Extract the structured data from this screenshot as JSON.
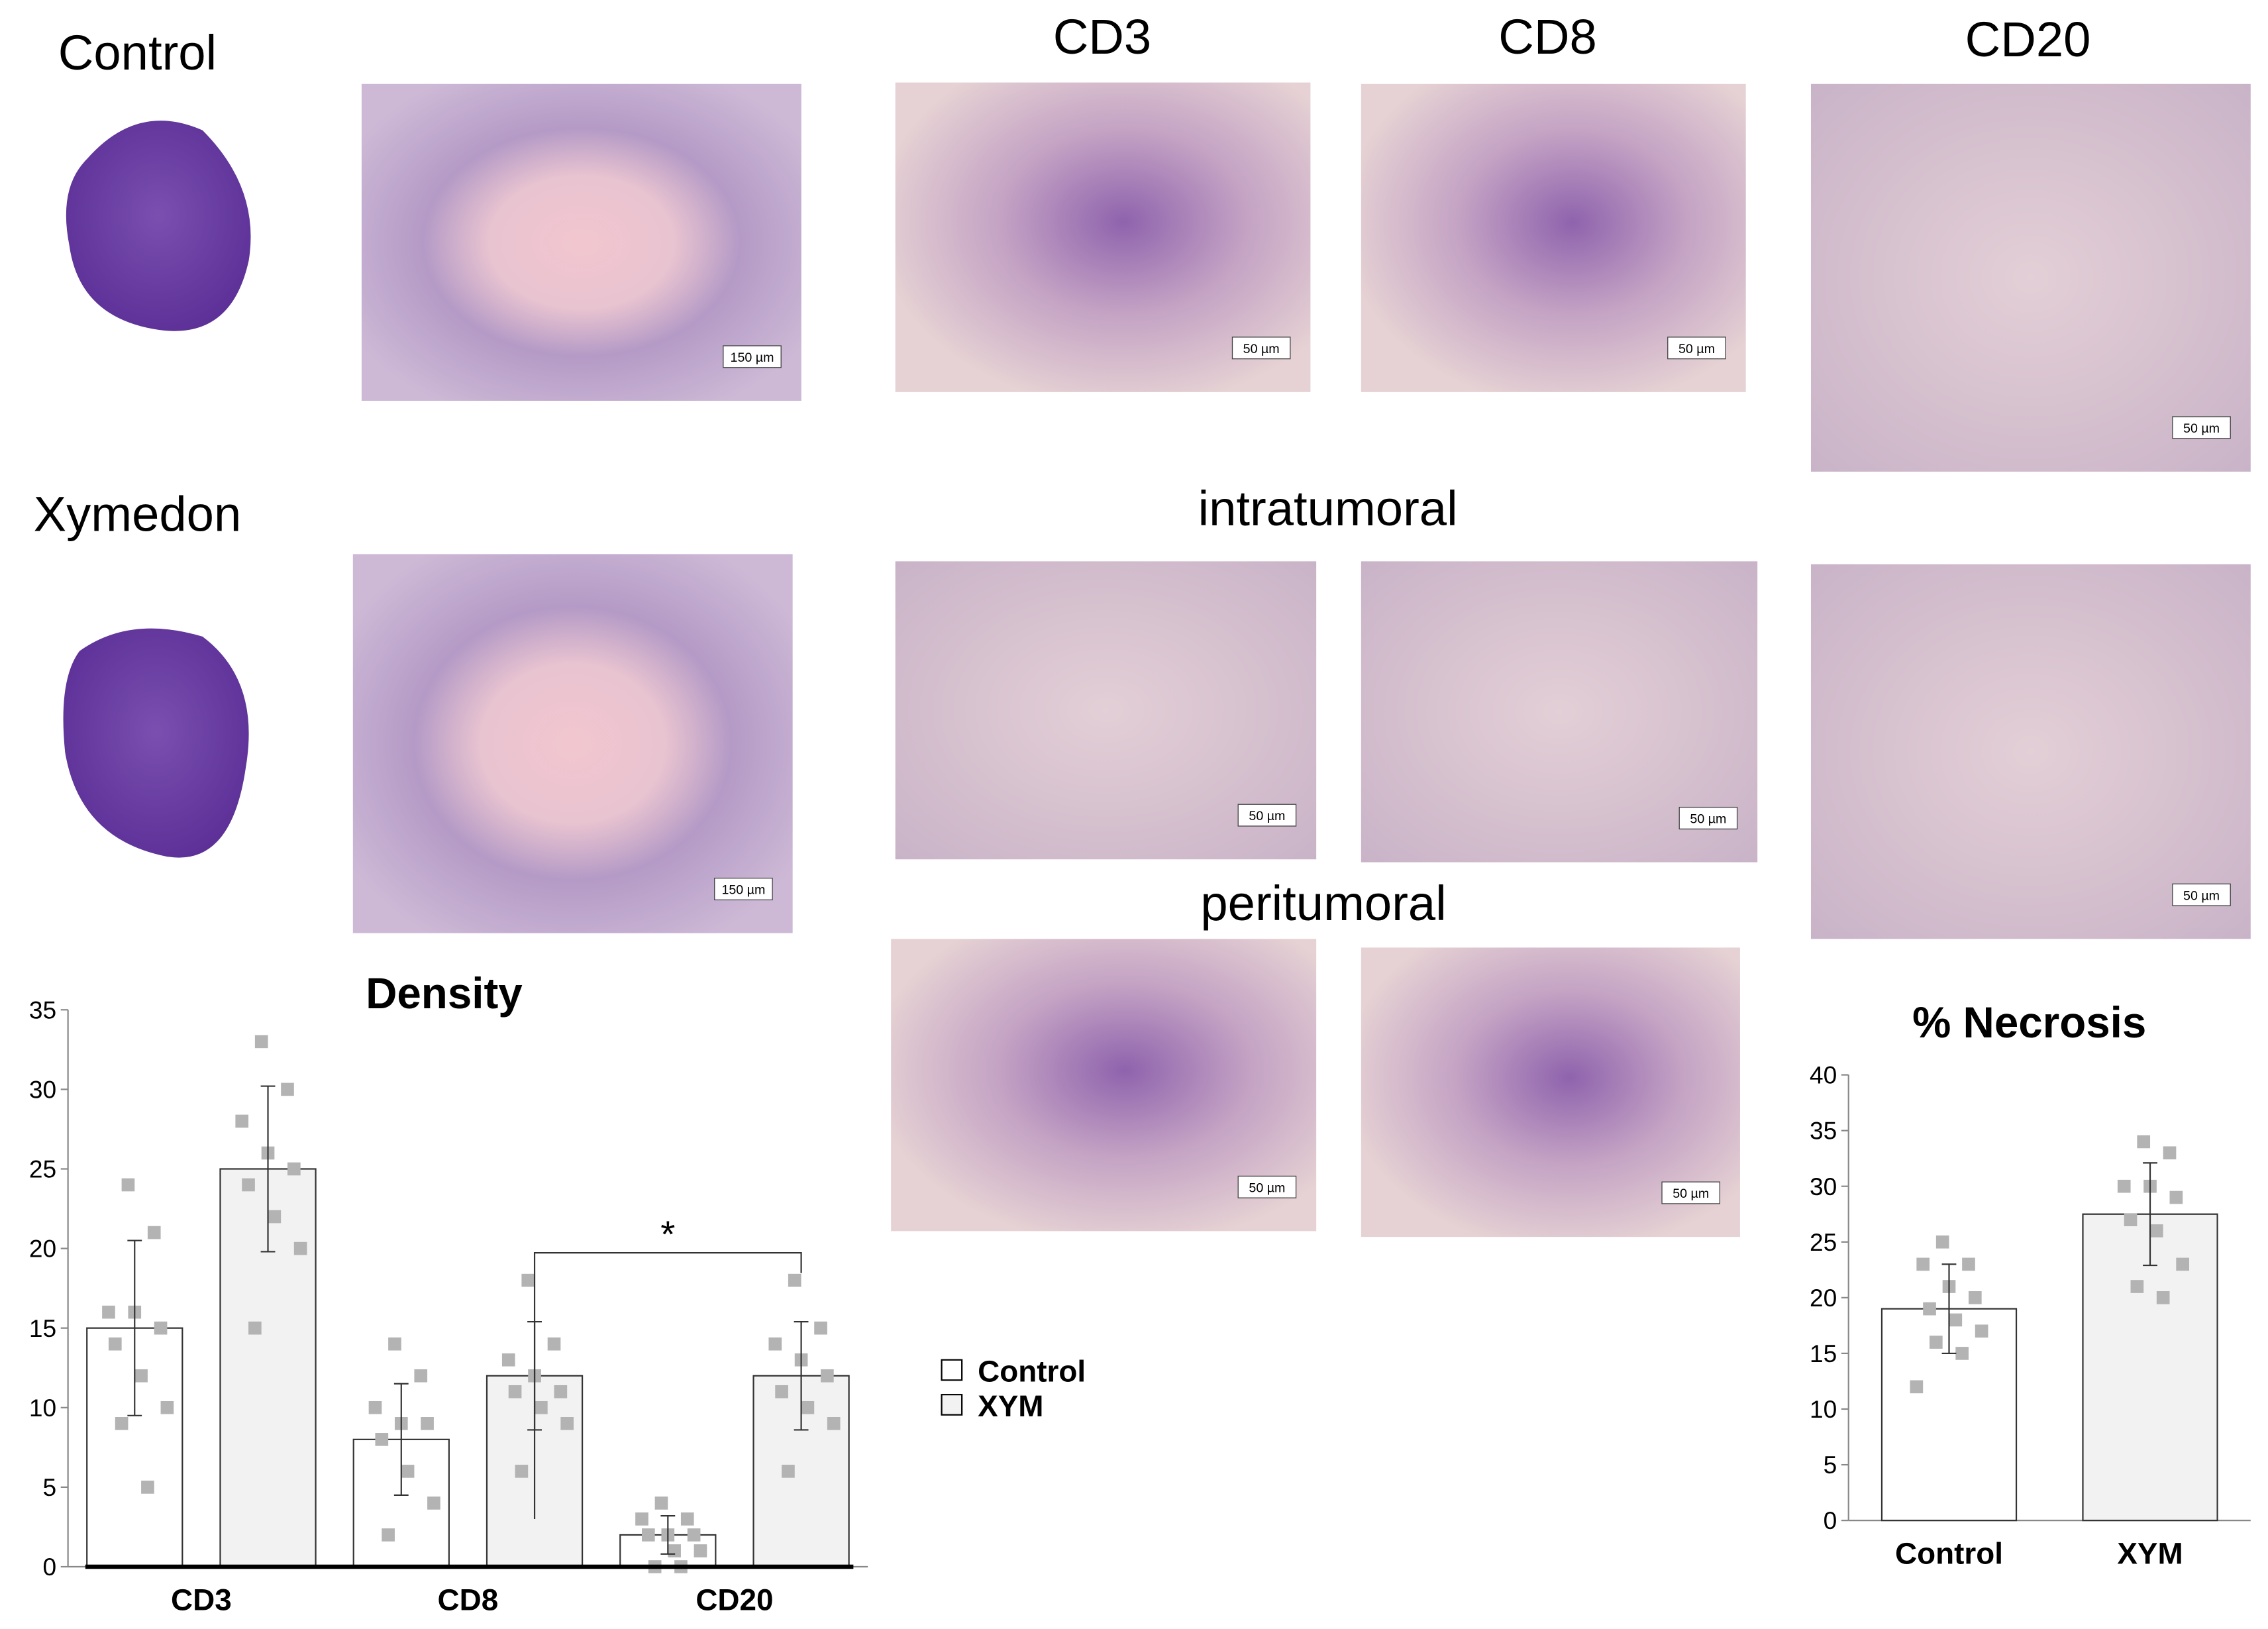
{
  "labels": {
    "control": "Control",
    "xymedon": "Xymedon",
    "cd3": "CD3",
    "cd8": "CD8",
    "cd20": "CD20",
    "intratumoral": "intratumoral",
    "peritumoral": "peritumoral"
  },
  "scale_bars": [
    "150 µm",
    "50 µm",
    "50 µm",
    "50 µm",
    "150 µm",
    "50 µm",
    "50 µm",
    "50 µm",
    "50 µm",
    "50 µm"
  ],
  "chart_data": [
    {
      "type": "bar",
      "title": "Density",
      "categories": [
        "CD3",
        "CD8",
        "CD20"
      ],
      "series": [
        {
          "name": "Control",
          "color": "#ffffff",
          "values": [
            15,
            8,
            2
          ],
          "errors": [
            5.5,
            3.5,
            1.2
          ],
          "points": [
            [
              24,
              21,
              16,
              16,
              15,
              14,
              12,
              10,
              9,
              5
            ],
            [
              14,
              12,
              10,
              9,
              9,
              8,
              6,
              4,
              2
            ],
            [
              4,
              3,
              3,
              2,
              2,
              2,
              1,
              1,
              0,
              0
            ]
          ]
        },
        {
          "name": "XYM",
          "color": "#f2f2f2",
          "values": [
            25,
            12,
            12
          ],
          "errors": [
            5.2,
            3.4,
            3.4
          ],
          "points": [
            [
              33,
              30,
              28,
              26,
              25,
              24,
              22,
              20,
              15
            ],
            [
              18,
              14,
              13,
              12,
              11,
              11,
              10,
              9,
              6
            ],
            [
              18,
              15,
              14,
              13,
              12,
              11,
              10,
              9,
              6
            ]
          ]
        }
      ],
      "ylim": [
        0,
        35
      ],
      "yticks": [
        0,
        5,
        10,
        15,
        20,
        25,
        30,
        35
      ],
      "annotation": "*",
      "point_color": "#b3b3b3"
    },
    {
      "type": "bar",
      "title": "% Necrosis",
      "categories": [
        "Control",
        "XYM"
      ],
      "values": [
        19,
        27.5
      ],
      "errors": [
        4,
        4.6
      ],
      "colors": [
        "#ffffff",
        "#f2f2f2"
      ],
      "points": [
        [
          25,
          23,
          23,
          21,
          20,
          19,
          18,
          17,
          16,
          15,
          12
        ],
        [
          34,
          33,
          30,
          30,
          29,
          27,
          26,
          23,
          21,
          20
        ]
      ],
      "ylim": [
        0,
        40
      ],
      "yticks": [
        0,
        5,
        10,
        15,
        20,
        25,
        30,
        35,
        40
      ],
      "point_color": "#b3b3b3"
    }
  ]
}
